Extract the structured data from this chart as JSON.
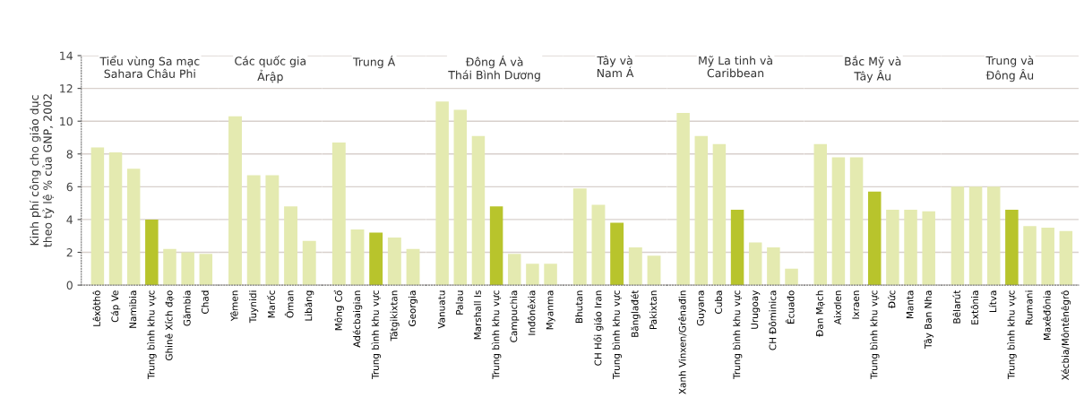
{
  "chart_data": [
    {
      "type": "bar",
      "title": "Tiểu vùng Sa mạc\nSahara Châu Phi",
      "ylabel": "Kinh phí công cho giáo dục\ntheo tỷ lệ % của GNP, 2002",
      "categories": [
        "Lêxôthô",
        "Cáp Ve",
        "Namibia",
        "Trung bình khu vực",
        "Ghinê Xích đạo",
        "Gămbia",
        "Chad"
      ],
      "values": [
        8.4,
        8.1,
        7.1,
        4.0,
        2.2,
        2.0,
        1.9
      ],
      "colors": [
        "#e4eab0",
        "#e4eab0",
        "#e4eab0",
        "#b8c42c",
        "#e4eab0",
        "#e4eab0",
        "#e4eab0"
      ],
      "ylim": [
        0,
        14
      ],
      "yticks": [
        0,
        2,
        4,
        6,
        8,
        10,
        12,
        14
      ],
      "grid": "y"
    },
    {
      "type": "bar",
      "title": "Các quốc gia\nẢrập",
      "categories": [
        "Yêmen",
        "Tuynidi",
        "Marốc",
        "Ôman",
        "Libăng"
      ],
      "values": [
        10.3,
        6.7,
        6.7,
        4.8,
        2.7
      ],
      "colors": [
        "#e4eab0",
        "#e4eab0",
        "#e4eab0",
        "#e4eab0",
        "#e4eab0"
      ],
      "ylim": [
        0,
        14
      ],
      "tick_labels": "x",
      "grid": "y"
    },
    {
      "type": "bar",
      "title": "Trung Á",
      "categories": [
        "Mông Cổ",
        "Adécbaigian",
        "Trung bình khu vực",
        "Tátgikixtan",
        "Georgia"
      ],
      "values": [
        8.7,
        3.4,
        3.2,
        2.9,
        2.2
      ],
      "colors": [
        "#e4eab0",
        "#e4eab0",
        "#b8c42c",
        "#e4eab0",
        "#e4eab0"
      ],
      "ylim": [
        0,
        14
      ],
      "tick_labels": "x",
      "grid": "y"
    },
    {
      "type": "bar",
      "title": "Đông Á và\nThái Bình Dương",
      "categories": [
        "Vanuatu",
        "Palau",
        "Marshall Is",
        "Trung bình khu vực",
        "Campuchia",
        "Inđônêxia",
        "Myanma"
      ],
      "values": [
        11.2,
        10.7,
        9.1,
        4.8,
        1.9,
        1.3,
        1.3
      ],
      "colors": [
        "#e4eab0",
        "#e4eab0",
        "#e4eab0",
        "#b8c42c",
        "#e4eab0",
        "#e4eab0",
        "#e4eab0"
      ],
      "ylim": [
        0,
        14
      ],
      "tick_labels": "x",
      "grid": "y"
    },
    {
      "type": "bar",
      "title": "Tây và\nNam Á",
      "categories": [
        "Bhutan",
        "CH Hồi giáo Iran",
        "Trung bình khu vực",
        "Bănglađét",
        "Pakixtan"
      ],
      "values": [
        5.9,
        4.9,
        3.8,
        2.3,
        1.8
      ],
      "colors": [
        "#e4eab0",
        "#e4eab0",
        "#b8c42c",
        "#e4eab0",
        "#e4eab0"
      ],
      "ylim": [
        0,
        14
      ],
      "tick_labels": "x",
      "grid": "y"
    },
    {
      "type": "bar",
      "title": "Mỹ La tinh và\nCaribbean",
      "categories": [
        "Xanh Vinxen/Grênađin",
        "Guyana",
        "Cuba",
        "Trung bình khu vực",
        "Urugoay",
        "CH Đôminica",
        "Êcuađo"
      ],
      "values": [
        10.5,
        9.1,
        8.6,
        4.6,
        2.6,
        2.3,
        1.0
      ],
      "colors": [
        "#e4eab0",
        "#e4eab0",
        "#e4eab0",
        "#b8c42c",
        "#e4eab0",
        "#e4eab0",
        "#e4eab0"
      ],
      "ylim": [
        0,
        14
      ],
      "tick_labels": "x",
      "grid": "y"
    },
    {
      "type": "bar",
      "title": "Bắc Mỹ và\nTây Âu",
      "categories": [
        "Đan Mạch",
        "Aixơlen",
        "Ixraen",
        "Trung bình khu vực",
        "Đức",
        "Manta",
        "Tây Ban Nha"
      ],
      "values": [
        8.6,
        7.8,
        7.8,
        5.7,
        4.6,
        4.6,
        4.5
      ],
      "colors": [
        "#e4eab0",
        "#e4eab0",
        "#e4eab0",
        "#b8c42c",
        "#e4eab0",
        "#e4eab0",
        "#e4eab0"
      ],
      "ylim": [
        0,
        14
      ],
      "tick_labels": "x",
      "grid": "y"
    },
    {
      "type": "bar",
      "title": "Trung và\nĐông Âu",
      "categories": [
        "Bêlarút",
        "Extônia",
        "Lítva",
        "Trung bình khu vực",
        "Rumani",
        "Maxêđônia",
        "Xécbia/Môntênêgrô"
      ],
      "values": [
        6.0,
        6.0,
        6.0,
        4.6,
        3.6,
        3.5,
        3.3
      ],
      "colors": [
        "#e4eab0",
        "#e4eab0",
        "#e4eab0",
        "#b8c42c",
        "#e4eab0",
        "#e4eab0",
        "#e4eab0"
      ],
      "ylim": [
        0,
        14
      ],
      "tick_labels": "x",
      "grid": "y"
    }
  ]
}
